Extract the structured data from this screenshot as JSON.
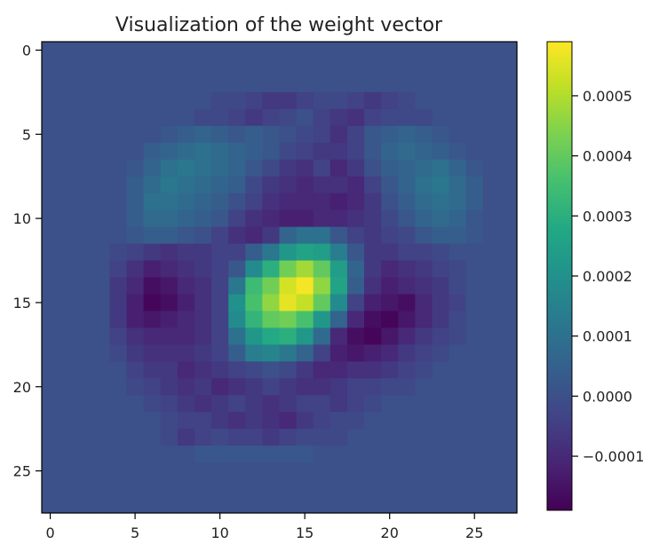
{
  "chart_data": {
    "type": "heatmap",
    "title": "Visualization of the weight vector",
    "xlabel": "",
    "ylabel": "",
    "grid": false,
    "colormap": "viridis",
    "x_ticks": [
      "0",
      "5",
      "10",
      "15",
      "20",
      "25"
    ],
    "y_ticks": [
      "0",
      "5",
      "10",
      "15",
      "20",
      "25"
    ],
    "x_range": [
      -0.5,
      27.5
    ],
    "y_range": [
      -0.5,
      27.5
    ],
    "colorbar": {
      "vmin": -0.00019,
      "vmax": 0.00059,
      "ticks": [
        -0.0001,
        0.0,
        0.0001,
        0.0002,
        0.0003,
        0.0004,
        0.0005
      ],
      "tick_labels": [
        "−0.0001",
        "0.0000",
        "0.0001",
        "0.0002",
        "0.0003",
        "0.0004",
        "0.0005"
      ]
    },
    "matrix_rows": [
      [
        0,
        0,
        0,
        0,
        0,
        0,
        0,
        0,
        0,
        0,
        0,
        0,
        0,
        0,
        0,
        0,
        0,
        0,
        0,
        0,
        0,
        0,
        0,
        0,
        0,
        0,
        0,
        0
      ],
      [
        0,
        0,
        0,
        0,
        0,
        0,
        0,
        0,
        0,
        0,
        0,
        0,
        0,
        0,
        0,
        0,
        0,
        0,
        0,
        0,
        0,
        0,
        0,
        0,
        0,
        0,
        0,
        0
      ],
      [
        0,
        0,
        0,
        0,
        0,
        0,
        0,
        0,
        0,
        0,
        0,
        0,
        0,
        0,
        0,
        0,
        0,
        0,
        0,
        0,
        0,
        0,
        0,
        0,
        0,
        0,
        0,
        0
      ],
      [
        0,
        0,
        0,
        0,
        0,
        0,
        0,
        0,
        0,
        0,
        -2,
        -2,
        -4,
        -6,
        -6,
        -4,
        -2,
        -2,
        -4,
        -6,
        -4,
        -2,
        0,
        0,
        0,
        0,
        0,
        0
      ],
      [
        0,
        0,
        0,
        0,
        0,
        0,
        0,
        0,
        0,
        -2,
        -2,
        -4,
        -6,
        -4,
        -2,
        0,
        -4,
        -6,
        -8,
        -4,
        -2,
        -2,
        -2,
        0,
        0,
        0,
        0,
        0
      ],
      [
        0,
        0,
        0,
        0,
        0,
        0,
        0,
        2,
        4,
        6,
        4,
        2,
        4,
        2,
        0,
        -2,
        -4,
        -8,
        -4,
        2,
        4,
        6,
        4,
        2,
        0,
        0,
        0,
        0
      ],
      [
        0,
        0,
        0,
        0,
        0,
        0,
        4,
        6,
        8,
        10,
        8,
        6,
        4,
        2,
        -2,
        -4,
        -6,
        -6,
        -4,
        2,
        6,
        8,
        6,
        4,
        2,
        0,
        0,
        0
      ],
      [
        0,
        0,
        0,
        0,
        0,
        2,
        6,
        10,
        12,
        10,
        8,
        6,
        2,
        -2,
        -6,
        -8,
        -4,
        -10,
        -6,
        0,
        4,
        6,
        8,
        10,
        6,
        2,
        0,
        0
      ],
      [
        0,
        0,
        0,
        0,
        0,
        4,
        8,
        12,
        10,
        8,
        6,
        4,
        -2,
        -6,
        -8,
        -10,
        -8,
        -8,
        -10,
        -4,
        2,
        6,
        10,
        12,
        8,
        4,
        0,
        0
      ],
      [
        0,
        0,
        0,
        0,
        0,
        4,
        10,
        10,
        8,
        6,
        4,
        0,
        -4,
        -8,
        -10,
        -10,
        -10,
        -12,
        -10,
        -6,
        0,
        4,
        8,
        10,
        8,
        4,
        0,
        0
      ],
      [
        0,
        0,
        0,
        0,
        0,
        4,
        8,
        8,
        6,
        4,
        2,
        -4,
        -8,
        -10,
        -12,
        -12,
        -10,
        -10,
        -8,
        -6,
        -2,
        2,
        6,
        8,
        6,
        2,
        0,
        0
      ],
      [
        0,
        0,
        0,
        0,
        0,
        2,
        4,
        4,
        2,
        0,
        -4,
        -8,
        -10,
        -6,
        6,
        10,
        10,
        2,
        -4,
        -6,
        -4,
        -2,
        2,
        4,
        4,
        2,
        0,
        0
      ],
      [
        0,
        0,
        0,
        0,
        -2,
        -4,
        -6,
        -8,
        -6,
        -6,
        -4,
        -4,
        4,
        12,
        22,
        26,
        24,
        14,
        2,
        -6,
        -6,
        -4,
        -4,
        -2,
        0,
        0,
        0,
        0
      ],
      [
        0,
        0,
        0,
        0,
        -4,
        -8,
        -12,
        -10,
        -8,
        -6,
        -4,
        2,
        18,
        30,
        42,
        48,
        40,
        24,
        6,
        -6,
        -10,
        -8,
        -6,
        -4,
        -2,
        0,
        0,
        0
      ],
      [
        0,
        0,
        0,
        0,
        -6,
        -10,
        -16,
        -14,
        -10,
        -8,
        -4,
        12,
        34,
        42,
        54,
        58,
        46,
        26,
        4,
        -8,
        -12,
        -10,
        -8,
        -6,
        -2,
        0,
        0,
        0
      ],
      [
        0,
        0,
        0,
        0,
        -6,
        -12,
        -18,
        -16,
        -12,
        -8,
        -4,
        20,
        36,
        46,
        56,
        52,
        40,
        18,
        -4,
        -12,
        -14,
        -16,
        -10,
        -6,
        -4,
        0,
        0,
        0
      ],
      [
        0,
        0,
        0,
        0,
        -6,
        -12,
        -14,
        -12,
        -10,
        -8,
        -4,
        18,
        32,
        40,
        42,
        36,
        22,
        6,
        -10,
        -16,
        -18,
        -14,
        -10,
        -6,
        -2,
        0,
        0,
        0
      ],
      [
        0,
        0,
        0,
        0,
        -4,
        -8,
        -10,
        -10,
        -10,
        -8,
        -4,
        10,
        22,
        28,
        30,
        22,
        8,
        -10,
        -16,
        -18,
        -14,
        -10,
        -6,
        -4,
        -2,
        0,
        0,
        0
      ],
      [
        0,
        0,
        0,
        0,
        -2,
        -6,
        -8,
        -8,
        -8,
        -6,
        -4,
        4,
        14,
        16,
        12,
        6,
        -4,
        -12,
        -14,
        -12,
        -10,
        -6,
        -4,
        -2,
        0,
        0,
        0,
        0
      ],
      [
        0,
        0,
        0,
        0,
        0,
        -4,
        -6,
        -6,
        -10,
        -8,
        -6,
        -4,
        -2,
        0,
        -2,
        -6,
        -10,
        -10,
        -8,
        -8,
        -6,
        -4,
        -2,
        0,
        0,
        0,
        0,
        0
      ],
      [
        0,
        0,
        0,
        0,
        0,
        -2,
        -4,
        -6,
        -8,
        -6,
        -10,
        -8,
        -6,
        -4,
        -6,
        -8,
        -8,
        -6,
        -4,
        -4,
        -2,
        -2,
        0,
        0,
        0,
        0,
        0,
        0
      ],
      [
        0,
        0,
        0,
        0,
        0,
        0,
        -2,
        -4,
        -6,
        -8,
        -6,
        -4,
        -6,
        -8,
        -6,
        -4,
        -4,
        -6,
        -4,
        -2,
        0,
        0,
        0,
        0,
        0,
        0,
        0,
        0
      ],
      [
        0,
        0,
        0,
        0,
        0,
        0,
        0,
        -2,
        -4,
        -4,
        -6,
        -8,
        -6,
        -8,
        -10,
        -6,
        -4,
        -2,
        -2,
        0,
        0,
        0,
        0,
        0,
        0,
        0,
        0,
        0
      ],
      [
        0,
        0,
        0,
        0,
        0,
        0,
        0,
        -2,
        -6,
        -4,
        -2,
        -4,
        -4,
        -6,
        -4,
        -2,
        -2,
        -2,
        0,
        0,
        0,
        0,
        0,
        0,
        0,
        0,
        0,
        0
      ],
      [
        0,
        0,
        0,
        0,
        0,
        0,
        0,
        0,
        0,
        2,
        2,
        2,
        2,
        2,
        2,
        2,
        0,
        0,
        0,
        0,
        0,
        0,
        0,
        0,
        0,
        0,
        0,
        0
      ],
      [
        0,
        0,
        0,
        0,
        0,
        0,
        0,
        0,
        0,
        0,
        0,
        0,
        0,
        0,
        0,
        0,
        0,
        0,
        0,
        0,
        0,
        0,
        0,
        0,
        0,
        0,
        0,
        0
      ],
      [
        0,
        0,
        0,
        0,
        0,
        0,
        0,
        0,
        0,
        0,
        0,
        0,
        0,
        0,
        0,
        0,
        0,
        0,
        0,
        0,
        0,
        0,
        0,
        0,
        0,
        0,
        0,
        0
      ],
      [
        0,
        0,
        0,
        0,
        0,
        0,
        0,
        0,
        0,
        0,
        0,
        0,
        0,
        0,
        0,
        0,
        0,
        0,
        0,
        0,
        0,
        0,
        0,
        0,
        0,
        0,
        0,
        0
      ]
    ],
    "matrix_units": "1e-5"
  }
}
